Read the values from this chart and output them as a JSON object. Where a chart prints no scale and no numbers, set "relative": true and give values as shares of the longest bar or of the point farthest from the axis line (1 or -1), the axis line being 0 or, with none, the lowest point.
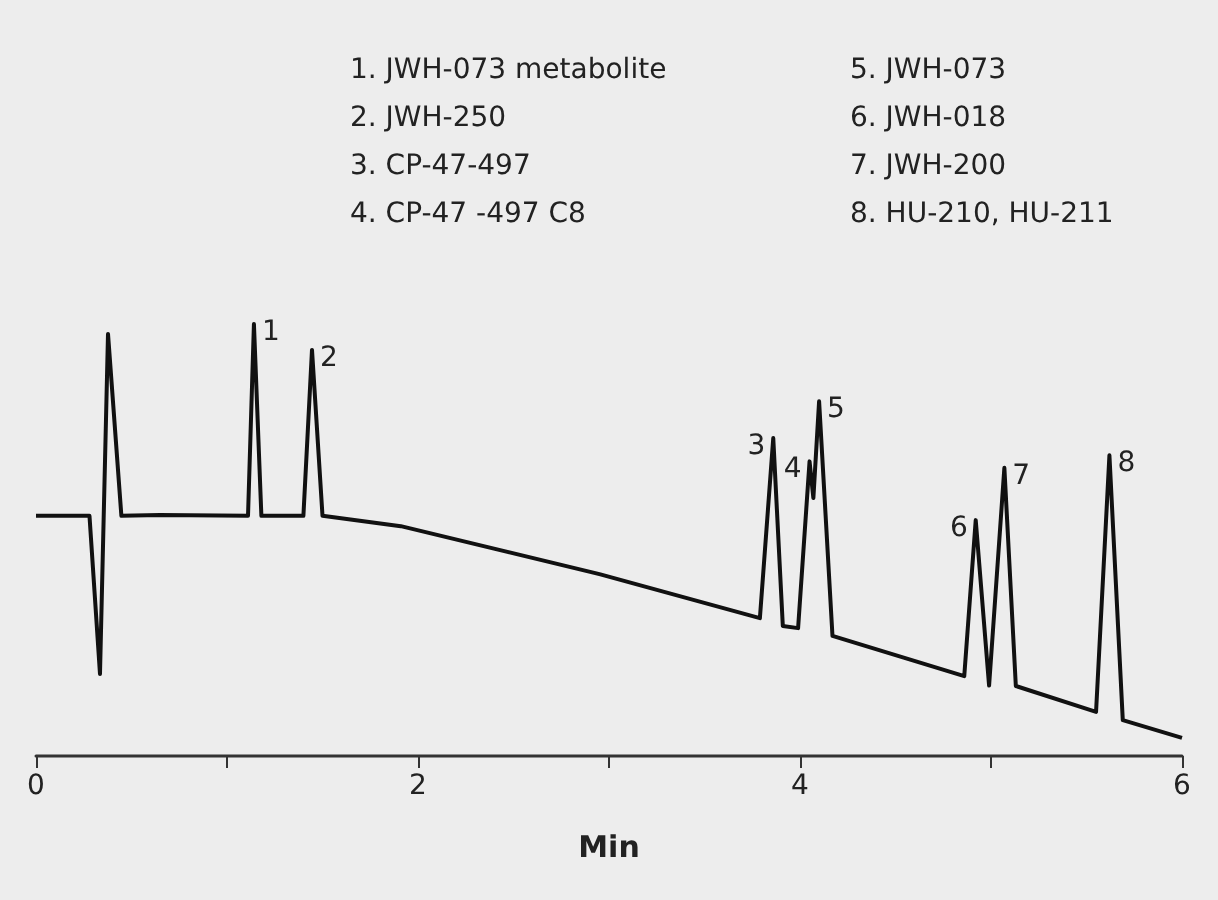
{
  "chart_data": {
    "type": "line",
    "relative": true,
    "xlabel": "Min",
    "color": "#111111",
    "xlim": [
      0,
      6
    ],
    "xticks": [
      0,
      {
        "value": 1,
        "label": null
      },
      2,
      {
        "value": 3,
        "label": null
      },
      4,
      {
        "value": 5,
        "label": null
      },
      6
    ],
    "x": [
      0,
      0.28,
      0.335,
      0.377,
      0.447,
      0.65,
      1.11,
      1.141,
      1.18,
      1.4,
      1.445,
      1.5,
      1.91,
      2.95,
      3.79,
      3.86,
      3.91,
      3.99,
      4.05,
      4.07,
      4.1,
      4.17,
      4.86,
      4.92,
      4.99,
      5.07,
      5.13,
      5.55,
      5.62,
      5.69,
      6.0
    ],
    "values": [
      0.556,
      0.556,
      0.19,
      0.977,
      0.556,
      0.558,
      0.556,
      1.0,
      0.556,
      0.556,
      0.94,
      0.556,
      0.532,
      0.421,
      0.319,
      0.736,
      0.301,
      0.296,
      0.682,
      0.597,
      0.821,
      0.278,
      0.185,
      0.546,
      0.163,
      0.667,
      0.162,
      0.102,
      0.696,
      0.083,
      0.042
    ],
    "annotations": [
      {
        "text": "1",
        "x": 1.141,
        "y": 1.0
      },
      {
        "text": "2",
        "x": 1.445,
        "y": 0.94
      },
      {
        "text": "3",
        "x": 3.86,
        "y": 0.736
      },
      {
        "text": "4",
        "x": 4.05,
        "y": 0.682
      },
      {
        "text": "5",
        "x": 4.1,
        "y": 0.821
      },
      {
        "text": "6",
        "x": 4.92,
        "y": 0.546
      },
      {
        "text": "7",
        "x": 5.07,
        "y": 0.667
      },
      {
        "text": "8",
        "x": 5.62,
        "y": 0.696
      },
      "1. JWH-073 metabolite",
      "2. JWH-250",
      "3. CP-47-497",
      "4. CP-47 -497 C8",
      "5. JWH-073",
      "6. JWH-018",
      "7. JWH-200",
      "8. HU-210, HU-211"
    ],
    "grid": false,
    "marker": "none",
    "line_style": "solid"
  }
}
